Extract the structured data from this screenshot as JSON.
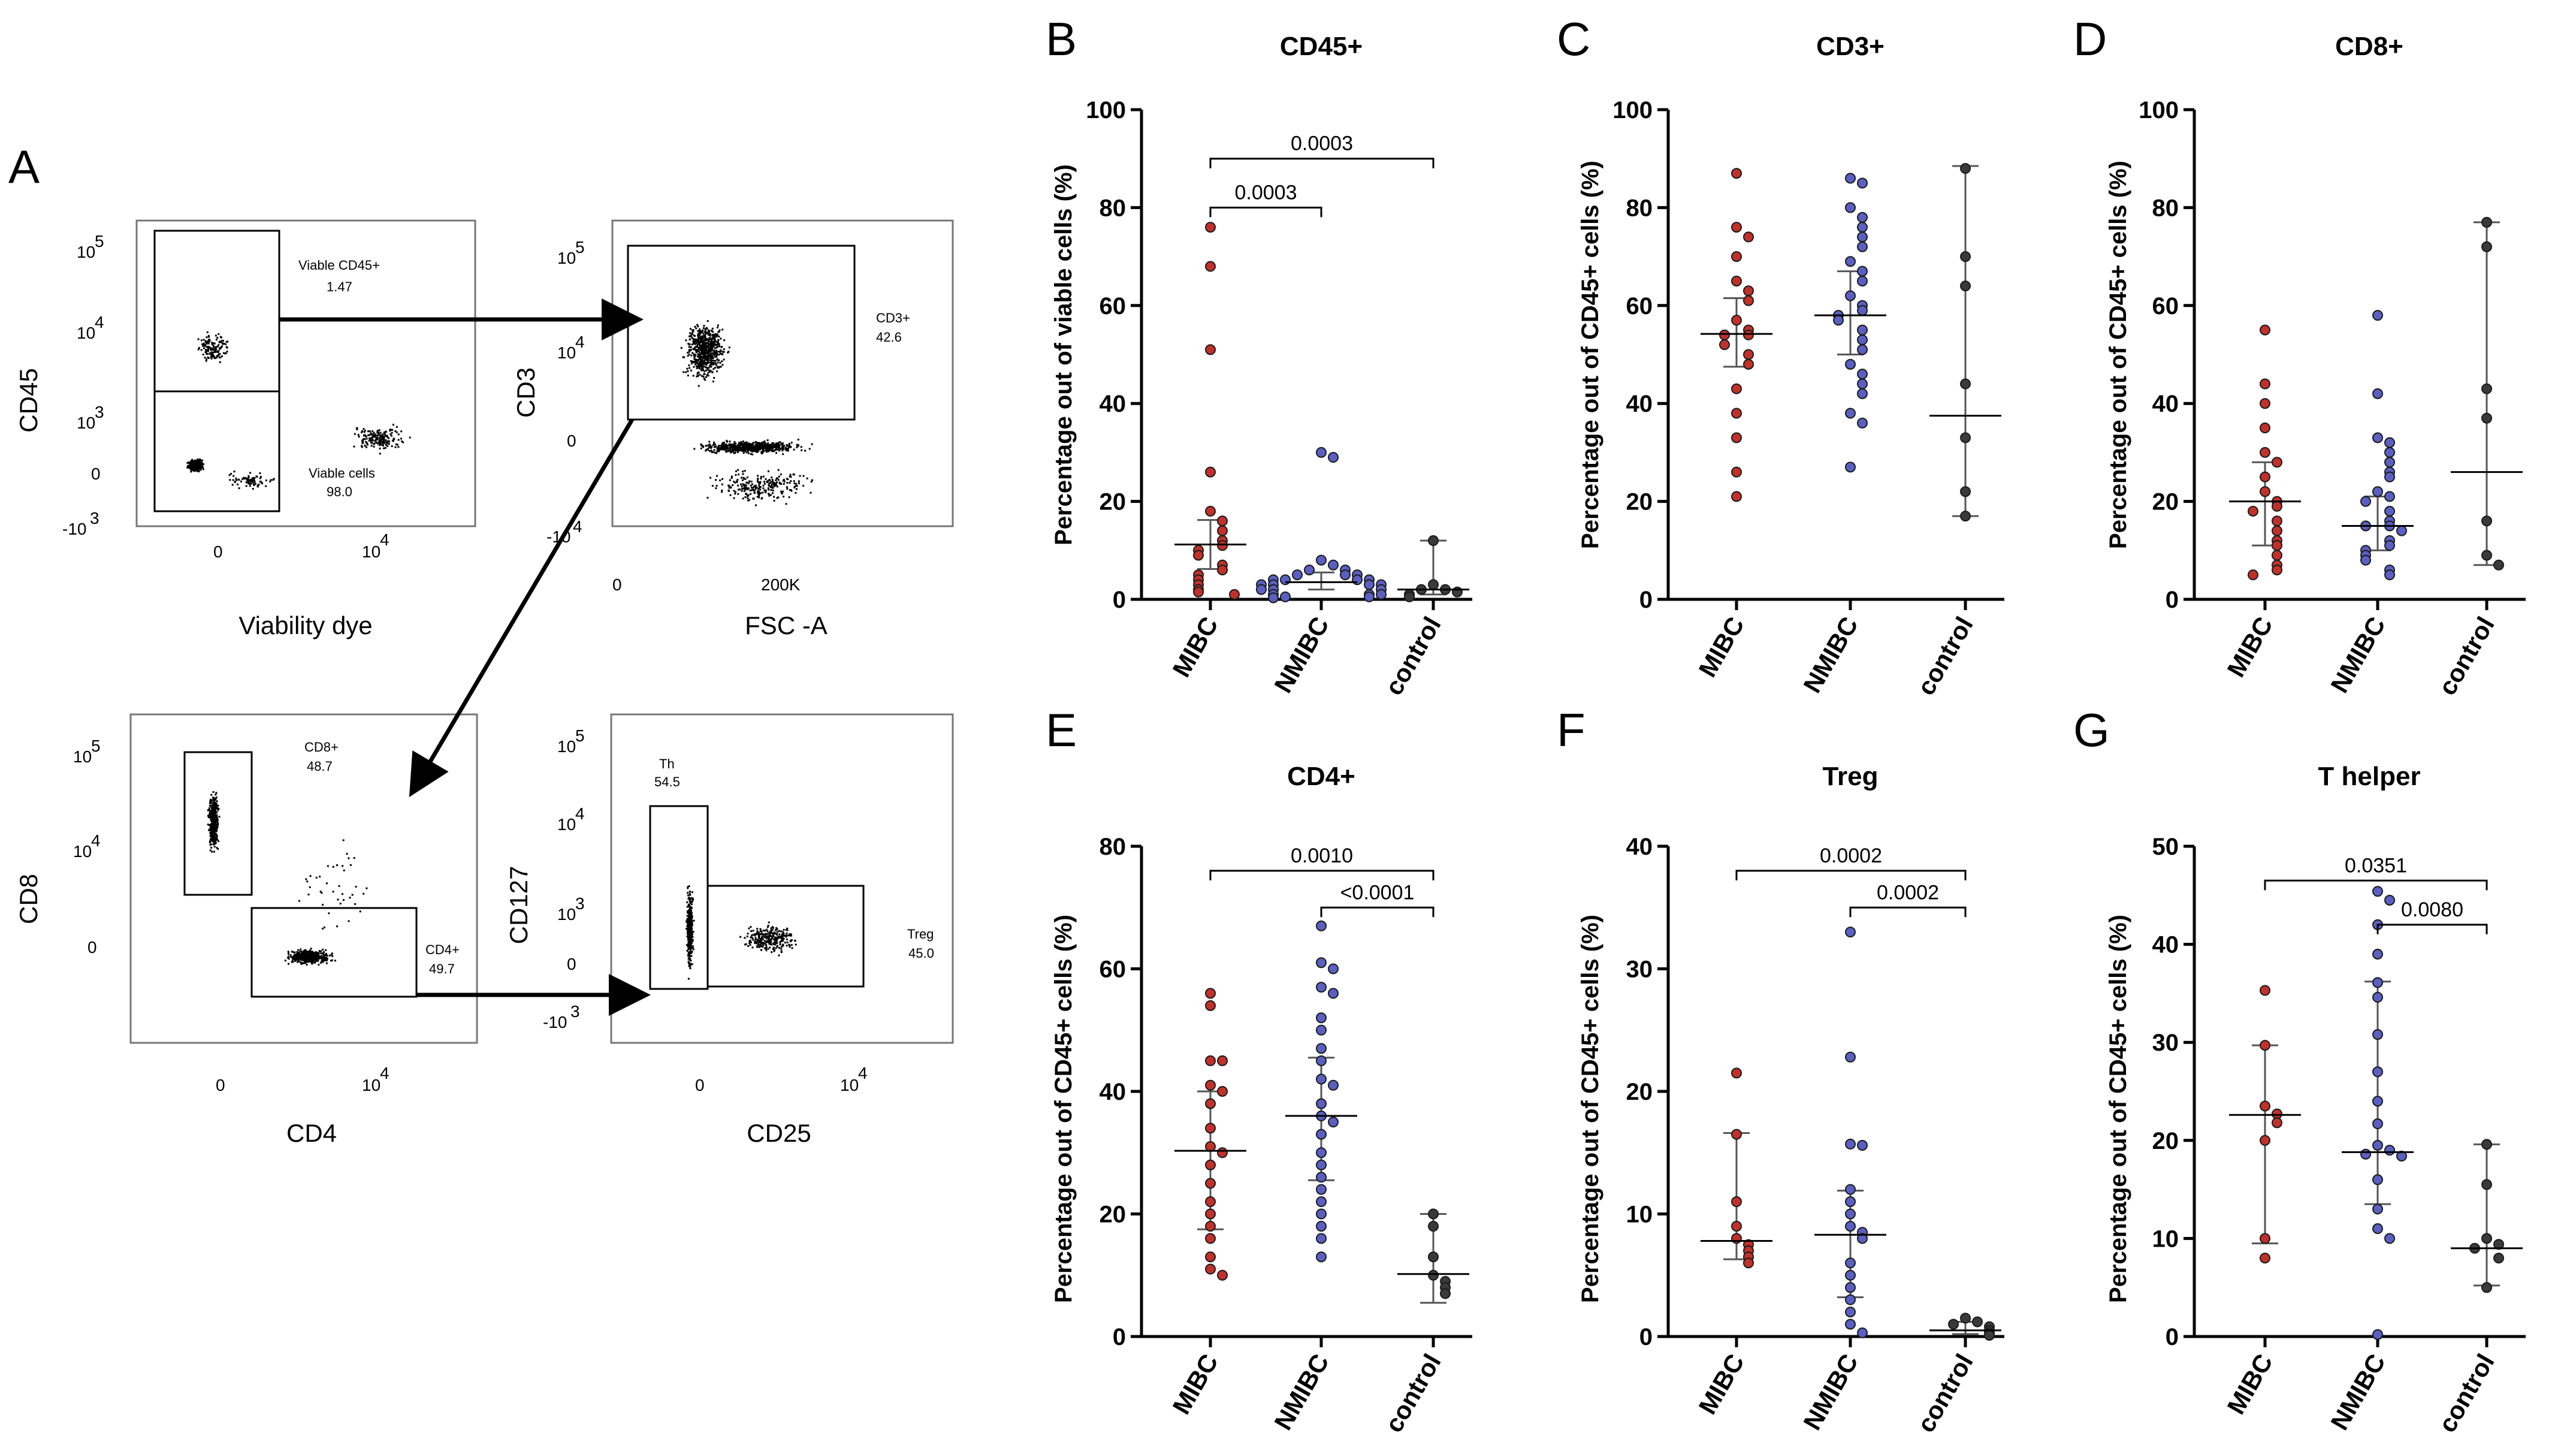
{
  "colors": {
    "MIBC": "#c0312b",
    "NMIBC": "#5a5fc2",
    "control": "#3a3a3a",
    "axis": "#000000"
  },
  "flow": {
    "letter": "A",
    "plots": [
      {
        "id": "f1",
        "xlabel": "Viability dye",
        "ylabel": "CD45",
        "xticks": [
          "0",
          "10"
        ],
        "xtick_exp": "4",
        "yticks": [
          {
            "base": "10",
            "exp": "5"
          },
          {
            "base": "10",
            "exp": "4"
          },
          {
            "base": "10",
            "exp": "3"
          },
          {
            "base": "0",
            "exp": ""
          },
          {
            "base": "-10",
            "exp": "3"
          }
        ],
        "gates": [
          {
            "name": "Viable CD45+",
            "value": "1.47"
          },
          {
            "name": "Viable cells",
            "value": "98.0"
          }
        ]
      },
      {
        "id": "f2",
        "xlabel": "FSC -A",
        "ylabel": "CD3",
        "xticks": [
          "0",
          "200K"
        ],
        "xtick_exp": "",
        "yticks": [
          {
            "base": "10",
            "exp": "5"
          },
          {
            "base": "10",
            "exp": "4"
          },
          {
            "base": "0",
            "exp": ""
          },
          {
            "base": "-10",
            "exp": "4"
          }
        ],
        "gates": [
          {
            "name": "CD3+",
            "value": "42.6"
          }
        ]
      },
      {
        "id": "f3",
        "xlabel": "CD4",
        "ylabel": "CD8",
        "xticks": [
          "0",
          "10"
        ],
        "xtick_exp": "4",
        "yticks": [
          {
            "base": "10",
            "exp": "5"
          },
          {
            "base": "10",
            "exp": "4"
          },
          {
            "base": "0",
            "exp": ""
          }
        ],
        "gates": [
          {
            "name": "CD8+",
            "value": "48.7"
          },
          {
            "name": "CD4+",
            "value": "49.7"
          }
        ]
      },
      {
        "id": "f4",
        "xlabel": "CD25",
        "ylabel": "CD127",
        "xticks": [
          "0",
          "10"
        ],
        "xtick_exp": "4",
        "yticks": [
          {
            "base": "10",
            "exp": "5"
          },
          {
            "base": "10",
            "exp": "4"
          },
          {
            "base": "10",
            "exp": "3"
          },
          {
            "base": "0",
            "exp": ""
          },
          {
            "base": "-10",
            "exp": "3"
          }
        ],
        "gates": [
          {
            "name": "Th",
            "value": "54.5"
          },
          {
            "name": "Treg",
            "value": "45.0"
          }
        ]
      }
    ]
  },
  "chart_data": [
    {
      "type": "scatter",
      "letter": "B",
      "title": "CD45+",
      "ylabel": "Percentage out of viable cells (%)",
      "categories": [
        "MIBC",
        "NMIBC",
        "control"
      ],
      "ylim": [
        0,
        100
      ],
      "yticks": [
        0,
        20,
        40,
        60,
        80,
        100
      ],
      "series": [
        {
          "name": "MIBC",
          "values": [
            76,
            68,
            51,
            26,
            18,
            16,
            14,
            12,
            11,
            10,
            9,
            7,
            6,
            5,
            4,
            3,
            2,
            1.5,
            1
          ],
          "median": 11.2,
          "q1": 6.2,
          "q3": 16.2
        },
        {
          "name": "NMIBC",
          "values": [
            30,
            29,
            8,
            7,
            6,
            6,
            5,
            5,
            5,
            4,
            4,
            4,
            4,
            3,
            3,
            3,
            3,
            2,
            2,
            2,
            1,
            1,
            1,
            0.5,
            0.5,
            0.3
          ],
          "median": 3.5,
          "q1": 2.0,
          "q3": 5.5
        },
        {
          "name": "control",
          "values": [
            12,
            3,
            2,
            2,
            1.5,
            1,
            0.5
          ],
          "median": 2.0,
          "q1": 1.0,
          "q3": 12.0
        }
      ],
      "comparisons": [
        {
          "from": 0,
          "to": 2,
          "label": "0.0003",
          "y": 90
        },
        {
          "from": 0,
          "to": 1,
          "label": "0.0003",
          "y": 80
        }
      ]
    },
    {
      "type": "scatter",
      "letter": "C",
      "title": "CD3+",
      "ylabel": "Percentage out of CD45+ cells (%)",
      "categories": [
        "MIBC",
        "NMIBC",
        "control"
      ],
      "ylim": [
        0,
        100
      ],
      "yticks": [
        0,
        20,
        40,
        60,
        80,
        100
      ],
      "series": [
        {
          "name": "MIBC",
          "values": [
            87,
            76,
            74,
            70,
            65,
            63,
            61,
            57,
            55,
            54,
            54,
            52,
            50,
            48,
            43,
            38,
            33,
            26,
            21
          ],
          "median": 54.2,
          "q1": 47.5,
          "q3": 61.5
        },
        {
          "name": "NMIBC",
          "values": [
            86,
            85,
            80,
            78,
            76,
            74,
            72,
            69,
            67,
            65,
            62,
            60,
            59,
            58,
            57,
            55,
            53,
            51,
            48,
            46,
            44,
            42,
            38,
            36,
            27
          ],
          "median": 58.0,
          "q1": 50.0,
          "q3": 67.0
        },
        {
          "name": "control",
          "values": [
            88,
            70,
            64,
            44,
            33,
            22,
            17
          ],
          "median": 37.5,
          "q1": 17.0,
          "q3": 88.5
        }
      ],
      "comparisons": []
    },
    {
      "type": "scatter",
      "letter": "D",
      "title": "CD8+",
      "ylabel": "Percentage out of CD45+ cells (%)",
      "categories": [
        "MIBC",
        "NMIBC",
        "control"
      ],
      "ylim": [
        0,
        100
      ],
      "yticks": [
        0,
        20,
        40,
        60,
        80,
        100
      ],
      "series": [
        {
          "name": "MIBC",
          "values": [
            55,
            44,
            40,
            35,
            30,
            28,
            25,
            22,
            20,
            19,
            18,
            16,
            14,
            12,
            11,
            9,
            7,
            6,
            5
          ],
          "median": 20.0,
          "q1": 11.0,
          "q3": 28.0
        },
        {
          "name": "NMIBC",
          "values": [
            58,
            42,
            33,
            32,
            30,
            28,
            26,
            25,
            22,
            21,
            20,
            18,
            16,
            15,
            15,
            14,
            12,
            11,
            10,
            9,
            8,
            6,
            5
          ],
          "median": 15.0,
          "q1": 10.0,
          "q3": 21.0
        },
        {
          "name": "control",
          "values": [
            77,
            72,
            43,
            37,
            16,
            9,
            7
          ],
          "median": 26.0,
          "q1": 7.0,
          "q3": 77.0
        }
      ],
      "comparisons": []
    },
    {
      "type": "scatter",
      "letter": "E",
      "title": "CD4+",
      "ylabel": "Percentage out of CD45+ cells (%)",
      "categories": [
        "MIBC",
        "NMIBC",
        "control"
      ],
      "ylim": [
        0,
        80
      ],
      "yticks": [
        0,
        20,
        40,
        60,
        80
      ],
      "series": [
        {
          "name": "MIBC",
          "values": [
            56,
            54,
            45,
            45,
            41,
            40,
            38,
            34,
            31,
            30,
            28,
            25,
            22,
            20,
            18,
            16,
            13,
            11,
            10
          ],
          "median": 30.3,
          "q1": 17.5,
          "q3": 40.0
        },
        {
          "name": "NMIBC",
          "values": [
            67,
            61,
            60,
            57,
            56,
            52,
            50,
            47,
            45,
            42,
            41,
            38,
            36,
            35,
            33,
            30,
            28,
            26,
            24,
            22,
            20,
            18,
            16,
            13
          ],
          "median": 36.0,
          "q1": 25.5,
          "q3": 45.5
        },
        {
          "name": "control",
          "values": [
            20,
            18,
            13,
            10,
            9,
            8,
            7
          ],
          "median": 10.2,
          "q1": 5.5,
          "q3": 20.0
        }
      ],
      "comparisons": [
        {
          "from": 0,
          "to": 2,
          "label": "0.0010",
          "y": 76
        },
        {
          "from": 1,
          "to": 2,
          "label": "<0.0001",
          "y": 70
        }
      ]
    },
    {
      "type": "scatter",
      "letter": "F",
      "title": "Treg",
      "ylabel": "Percentage out of CD45+ cells (%)",
      "categories": [
        "MIBC",
        "NMIBC",
        "control"
      ],
      "ylim": [
        0,
        40
      ],
      "yticks": [
        0,
        10,
        20,
        30,
        40
      ],
      "series": [
        {
          "name": "MIBC",
          "values": [
            21.5,
            16.5,
            11,
            9,
            8,
            7.5,
            7,
            6.5,
            6
          ],
          "median": 7.8,
          "q1": 6.3,
          "q3": 16.6
        },
        {
          "name": "NMIBC",
          "values": [
            33,
            22.8,
            15.7,
            15.6,
            12,
            11,
            10,
            9,
            8.5,
            8,
            6,
            5,
            4,
            3,
            2,
            1,
            0.3
          ],
          "median": 8.3,
          "q1": 3.2,
          "q3": 11.9
        },
        {
          "name": "control",
          "values": [
            1.5,
            1.2,
            1,
            0.8,
            0.5,
            0.3,
            0.1
          ],
          "median": 0.5,
          "q1": 0.2,
          "q3": 1.2
        }
      ],
      "comparisons": [
        {
          "from": 0,
          "to": 2,
          "label": "0.0002",
          "y": 38
        },
        {
          "from": 1,
          "to": 2,
          "label": "0.0002",
          "y": 35
        }
      ]
    },
    {
      "type": "scatter",
      "letter": "G",
      "title": "T helper",
      "ylabel": "Percentage out of CD45+ cells (%)",
      "categories": [
        "MIBC",
        "NMIBC",
        "control"
      ],
      "ylim": [
        0,
        50
      ],
      "yticks": [
        0,
        10,
        20,
        30,
        40,
        50
      ],
      "series": [
        {
          "name": "MIBC",
          "values": [
            35.3,
            29.7,
            23.5,
            22.7,
            21.8,
            20,
            10,
            8
          ],
          "median": 22.6,
          "q1": 9.5,
          "q3": 29.7
        },
        {
          "name": "NMIBC",
          "values": [
            45.4,
            44.5,
            42,
            39,
            36.1,
            34.6,
            30.8,
            27,
            24,
            21.7,
            19.5,
            19,
            18.6,
            18.4,
            16,
            13,
            11,
            10,
            0.2
          ],
          "median": 18.8,
          "q1": 13.5,
          "q3": 36.2
        },
        {
          "name": "control",
          "values": [
            19.6,
            15.5,
            10,
            9.4,
            9,
            8,
            5
          ],
          "median": 9.0,
          "q1": 5.2,
          "q3": 19.6
        }
      ],
      "comparisons": [
        {
          "from": 0,
          "to": 2,
          "label": "0.0351",
          "y": 46.5
        },
        {
          "from": 1,
          "to": 2,
          "label": "0.0080",
          "y": 42
        }
      ]
    }
  ]
}
